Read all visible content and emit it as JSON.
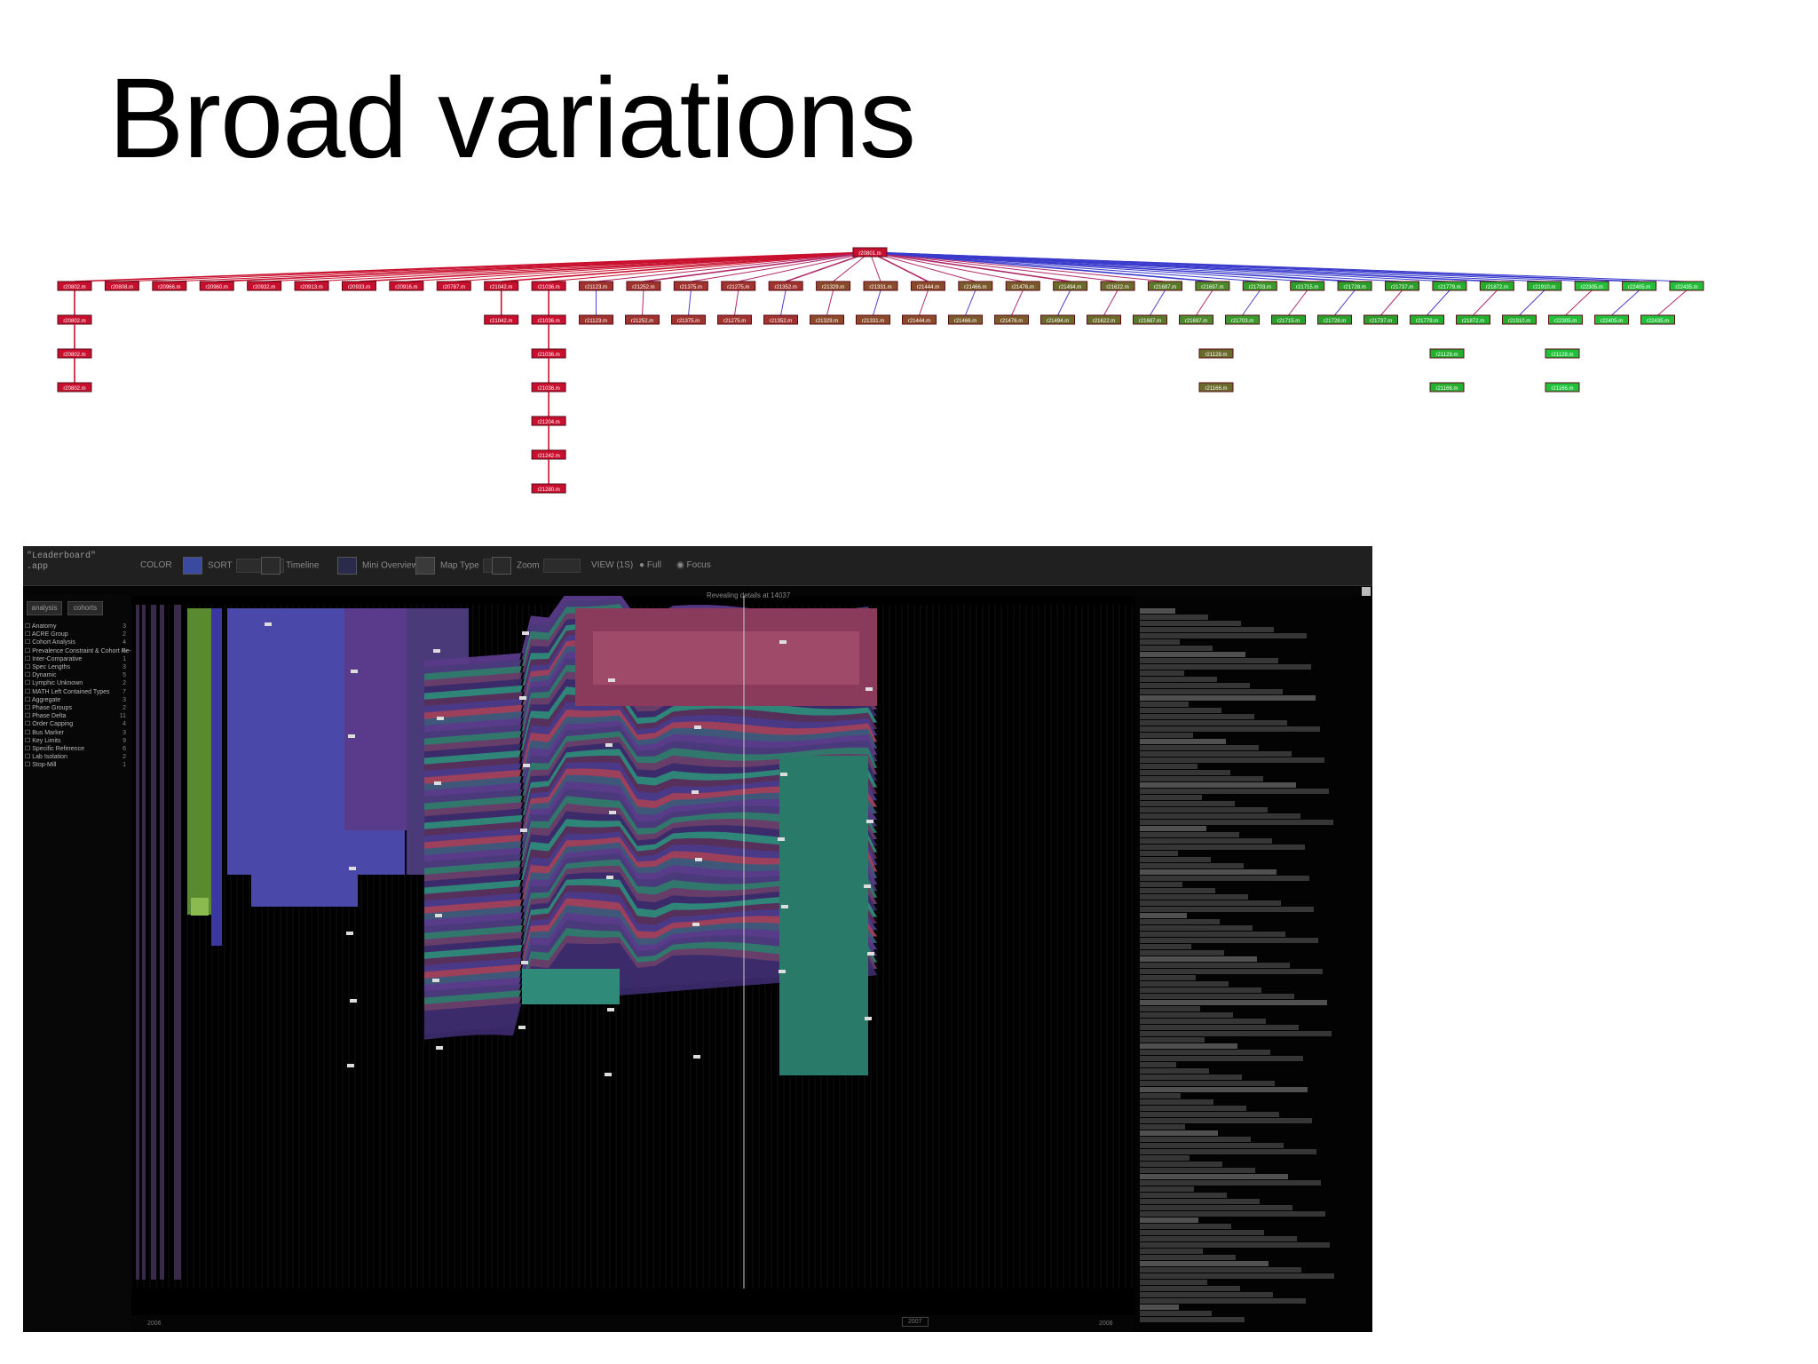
{
  "slide": {
    "title": "Broad variations"
  },
  "tree": {
    "root": "r20801.m",
    "level1": [
      "r20802.m",
      "r20808.m",
      "r20966.m",
      "r20960.m",
      "r20932.m",
      "r20913.m",
      "r20933.m",
      "r20916.m",
      "r20787.m",
      "r21042.m",
      "r21036.m",
      "r21123.m",
      "r21252.m",
      "r21375.m",
      "r21275.m",
      "r21352.m",
      "r21329.m",
      "r21331.m",
      "r21444.m",
      "r21466.m",
      "r21476.m",
      "r21494.m",
      "r21622.m",
      "r21687.m",
      "r21697.m",
      "r21703.m",
      "r21715.m",
      "r21728.m",
      "r21737.m",
      "r21779.m",
      "r21872.m",
      "r21910.m",
      "r22305.m",
      "r22405.m",
      "r22435.m"
    ],
    "level1_colors": [
      "#c8102e",
      "#c8102e",
      "#c8102e",
      "#c8102e",
      "#c8102e",
      "#c8102e",
      "#c8102e",
      "#c8102e",
      "#c8102e",
      "#c8102e",
      "#c8102e",
      "#a0332e",
      "#a0332e",
      "#a0332e",
      "#a0332e",
      "#a0332e",
      "#8b4a2a",
      "#8b4a2a",
      "#8b4a2a",
      "#7a5a2a",
      "#7a5a2a",
      "#6a6a2a",
      "#6a6a2a",
      "#5a7a2a",
      "#4a8a2a",
      "#3a9a2a",
      "#2aa02a",
      "#2aa02a",
      "#2aa02a",
      "#22b02e",
      "#22b02e",
      "#22b02e",
      "#22c03a",
      "#22c03a",
      "#22c03a"
    ]
  },
  "app": {
    "name": "\"Leaderboard\"\n.app",
    "toolbar": {
      "color_label": "COLOR",
      "item1": "SORT",
      "item2": "Timeline",
      "item3": "Mini Overview",
      "item4": "Map Type",
      "item5": "Zoom",
      "view_label": "VIEW (1S)",
      "radio1": "Full",
      "radio2": "Focus"
    },
    "tabs": [
      "analysis",
      "cohorts"
    ],
    "items": [
      {
        "label": "Anatomy",
        "count": "3"
      },
      {
        "label": "ACRE Group",
        "count": "2"
      },
      {
        "label": "Cohort Analysis",
        "count": "4"
      },
      {
        "label": "Prevalence Constraint & Cohort Re-slice",
        "count": "6"
      },
      {
        "label": "Inter-Comparative",
        "count": "1"
      },
      {
        "label": "Spec Lengths",
        "count": "3"
      },
      {
        "label": "Dynamic",
        "count": "5"
      },
      {
        "label": "Lymphic Unknown",
        "count": "2"
      },
      {
        "label": "MATH Left Contained Types",
        "count": "7"
      },
      {
        "label": "Aggregate",
        "count": "3"
      },
      {
        "label": "Phase Groups",
        "count": "2"
      },
      {
        "label": "Phase Delta",
        "count": "11"
      },
      {
        "label": "Order Capping",
        "count": "4"
      },
      {
        "label": "Bus Marker",
        "count": "3"
      },
      {
        "label": "Key Limits",
        "count": "9"
      },
      {
        "label": "Specific Reference",
        "count": "6"
      },
      {
        "label": "Lab Isolation",
        "count": "2"
      },
      {
        "label": "Stop-Mill",
        "count": "1"
      }
    ],
    "tooltip": "Revealing details at 14037",
    "bottom_left": "2006",
    "bottom_right": "2008",
    "bottom_mid": "2007"
  },
  "colors": {
    "app_bg": "#050505",
    "toolbar_bg": "#202020",
    "stream_purple": "#5a3a8a",
    "stream_blue": "#4a48a0",
    "stream_teal": "#2f8a7a",
    "stream_pink": "#a0405a",
    "stream_green": "#6a9a3a"
  }
}
